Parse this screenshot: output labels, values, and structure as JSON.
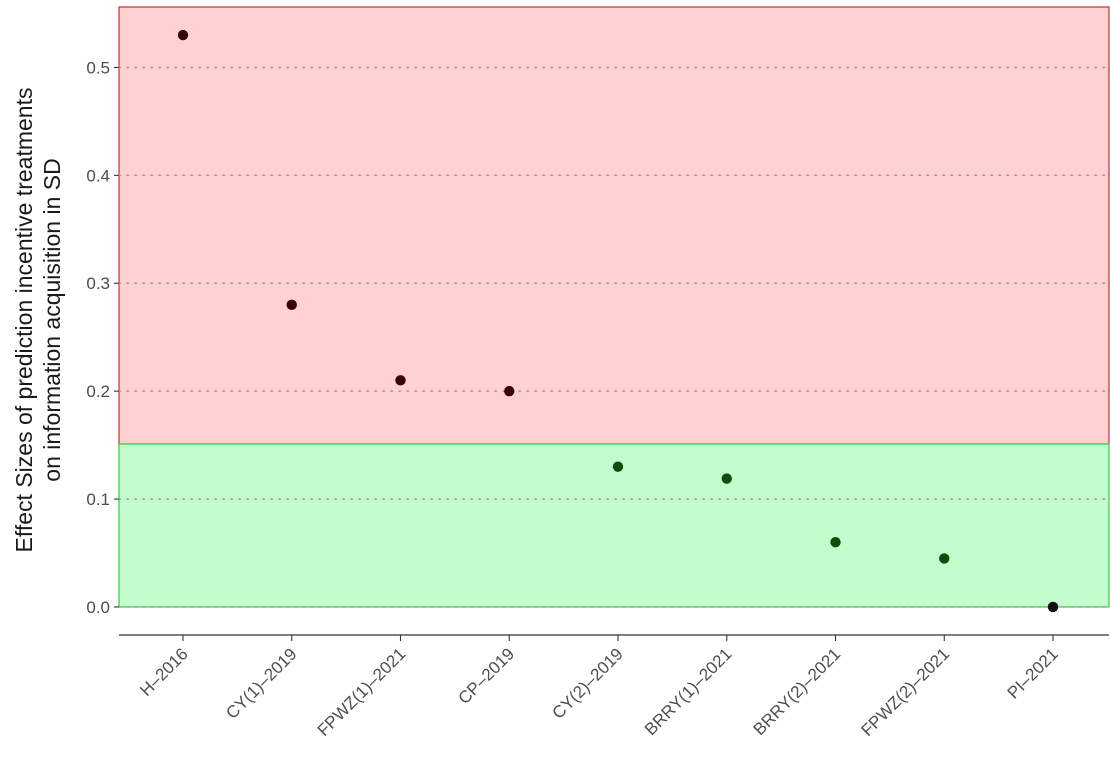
{
  "chart_data": {
    "type": "scatter",
    "title": "",
    "xlabel": "",
    "ylabel_lines": [
      "Effect Sizes of prediction incentive treatments",
      "on information acquisition in SD"
    ],
    "categories": [
      "H–2016",
      "CY(1)–2019",
      "FPWZ(1)–2021",
      "CP–2019",
      "CY(2)–2019",
      "BRRY(1)–2021",
      "BRRY(2)–2021",
      "FPWZ(2)–2021",
      "PI–2021"
    ],
    "values": [
      0.53,
      0.28,
      0.21,
      0.2,
      0.13,
      0.119,
      0.06,
      0.045,
      0.0
    ],
    "point_colors": [
      "#3d0000",
      "#3d0000",
      "#3d0000",
      "#3d0000",
      "#0b4d0b",
      "#0b4d0b",
      "#0b4d0b",
      "#0b4d0b",
      "#111111"
    ],
    "ylim": [
      -0.026,
      0.556
    ],
    "yticks": [
      0.0,
      0.1,
      0.2,
      0.3,
      0.4,
      0.5
    ],
    "ytick_labels": [
      "0.0",
      "0.1",
      "0.2",
      "0.3",
      "0.4",
      "0.5"
    ],
    "grid": "horizontal dotted",
    "bands": [
      {
        "name": "high",
        "ymin": 0.151,
        "ymax": 0.556,
        "fill": "#ffd1d3",
        "stroke": "#d6383f"
      },
      {
        "name": "low",
        "ymin": 0.0,
        "ymax": 0.151,
        "fill": "#c4fdcd",
        "stroke": "#37d84a"
      }
    ]
  }
}
